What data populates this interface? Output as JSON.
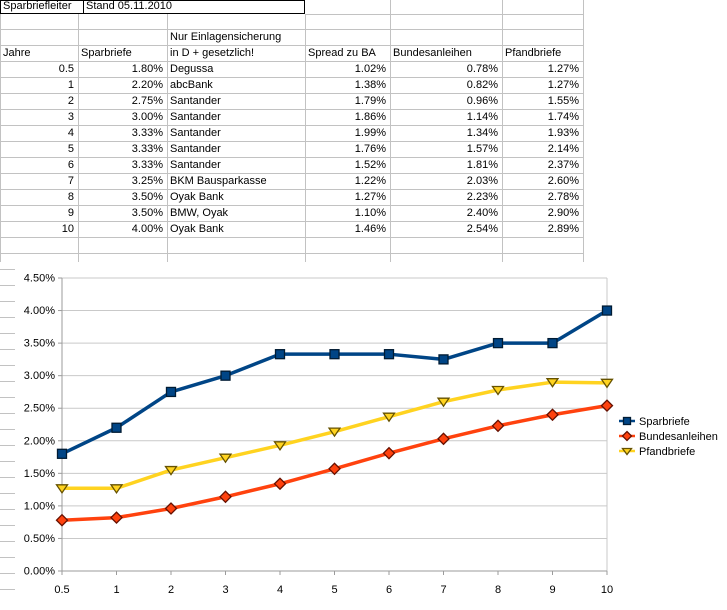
{
  "sheet_title": {
    "text": "Sparbriefleiter",
    "date": "Stand 05.11.2010"
  },
  "table": {
    "note": "Nur Einlagensicherung",
    "headers": [
      "Jahre",
      "Sparbriefe",
      "in D + gesetzlich!",
      "Spread zu BA",
      "Bundesanleihen",
      "Pfandbriefe"
    ],
    "rows": [
      [
        "0.5",
        "1.80%",
        "Degussa",
        "1.02%",
        "0.78%",
        "1.27%"
      ],
      [
        "1",
        "2.20%",
        "abcBank",
        "1.38%",
        "0.82%",
        "1.27%"
      ],
      [
        "2",
        "2.75%",
        "Santander",
        "1.79%",
        "0.96%",
        "1.55%"
      ],
      [
        "3",
        "3.00%",
        "Santander",
        "1.86%",
        "1.14%",
        "1.74%"
      ],
      [
        "4",
        "3.33%",
        "Santander",
        "1.99%",
        "1.34%",
        "1.93%"
      ],
      [
        "5",
        "3.33%",
        "Santander",
        "1.76%",
        "1.57%",
        "2.14%"
      ],
      [
        "6",
        "3.33%",
        "Santander",
        "1.52%",
        "1.81%",
        "2.37%"
      ],
      [
        "7",
        "3.25%",
        "BKM Bausparkasse",
        "1.22%",
        "2.03%",
        "2.60%"
      ],
      [
        "8",
        "3.50%",
        "Oyak Bank",
        "1.27%",
        "2.23%",
        "2.78%"
      ],
      [
        "9",
        "3.50%",
        "BMW, Oyak",
        "1.10%",
        "2.40%",
        "2.90%"
      ],
      [
        "10",
        "4.00%",
        "Oyak Bank",
        "1.46%",
        "2.54%",
        "2.89%"
      ]
    ]
  },
  "chart_data": {
    "type": "line",
    "x": [
      0.5,
      1,
      2,
      3,
      4,
      5,
      6,
      7,
      8,
      9,
      10
    ],
    "xtick_labels": [
      "0.5",
      "1",
      "2",
      "3",
      "4",
      "5",
      "6",
      "7",
      "8",
      "9",
      "10"
    ],
    "series": [
      {
        "name": "Sparbriefe",
        "color": "#004586",
        "edge": "#001b33",
        "marker": "square",
        "values": [
          1.8,
          2.2,
          2.75,
          3.0,
          3.33,
          3.33,
          3.33,
          3.25,
          3.5,
          3.5,
          4.0
        ]
      },
      {
        "name": "Bundesanleihen",
        "color": "#FF420E",
        "edge": "#661000",
        "marker": "diamond",
        "values": [
          0.78,
          0.82,
          0.96,
          1.14,
          1.34,
          1.57,
          1.81,
          2.03,
          2.23,
          2.4,
          2.54
        ]
      },
      {
        "name": "Pfandbriefe",
        "color": "#FFD320",
        "edge": "#665200",
        "marker": "triangle-down",
        "values": [
          1.27,
          1.27,
          1.55,
          1.74,
          1.93,
          2.14,
          2.37,
          2.6,
          2.78,
          2.9,
          2.89
        ]
      }
    ],
    "ylim": [
      0,
      4.5
    ],
    "ytick_step": 0.5,
    "ytick_format": "0.00%",
    "grid": "horizontal",
    "legend_position": "right",
    "colors": {
      "gridline": "#c9c9c9",
      "axis": "#9b9b9b"
    }
  }
}
